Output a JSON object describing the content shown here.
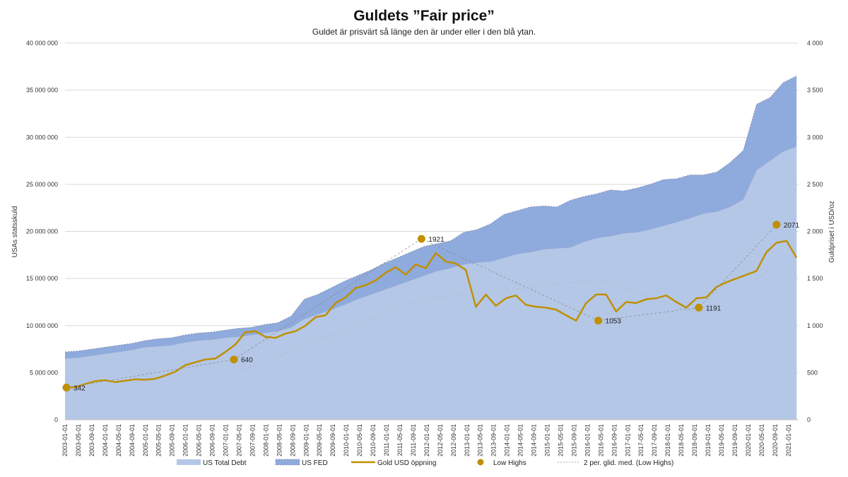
{
  "chart_data": {
    "type": "area",
    "title": "Guldets ”Fair price”",
    "subtitle": "Guldet är prisvärt så länge den är under eller i den blå ytan.",
    "ylabel_left": "USAs statsskuld",
    "ylabel_right": "Guldpriset i USD/oz",
    "ylim_left": [
      0,
      40000000
    ],
    "ylim_right": [
      0,
      4000
    ],
    "left_ticks": [
      "0",
      "5 000 000",
      "10 000 000",
      "15 000 000",
      "20 000 000",
      "25 000 000",
      "30 000 000",
      "35 000 000",
      "40 000 000"
    ],
    "right_ticks": [
      "0",
      "500",
      "1 000",
      "1 500",
      "2 000",
      "2 500",
      "3 000",
      "3 500",
      "4 000"
    ],
    "x_tick_labels": [
      "2003-01-01",
      "2003-05-01",
      "2003-09-01",
      "2004-01-01",
      "2004-05-01",
      "2004-09-01",
      "2005-01-01",
      "2005-05-01",
      "2005-09-01",
      "2006-01-01",
      "2006-05-01",
      "2006-09-01",
      "2007-01-01",
      "2007-05-01",
      "2007-09-01",
      "2008-01-01",
      "2008-05-01",
      "2008-09-01",
      "2009-01-01",
      "2009-05-01",
      "2009-09-01",
      "2010-01-01",
      "2010-05-01",
      "2010-09-01",
      "2011-01-01",
      "2011-05-01",
      "2011-09-01",
      "2012-01-01",
      "2012-05-01",
      "2012-09-01",
      "2013-01-01",
      "2013-05-01",
      "2013-09-01",
      "2014-01-01",
      "2014-05-01",
      "2014-09-01",
      "2015-01-01",
      "2015-05-01",
      "2015-09-01",
      "2016-01-01",
      "2016-05-01",
      "2016-09-01",
      "2017-01-01",
      "2017-05-01",
      "2017-09-01",
      "2018-01-01",
      "2018-05-01",
      "2018-09-01",
      "2019-01-01",
      "2019-05-01",
      "2019-09-01",
      "2020-01-01",
      "2020-05-01",
      "2020-09-01",
      "2021-01-01"
    ],
    "series": [
      {
        "name": "US Total Debt",
        "color": "#b4c7e7",
        "axis": "left",
        "values": [
          6500000,
          6600000,
          6800000,
          7000000,
          7200000,
          7400000,
          7700000,
          7800000,
          7900000,
          8200000,
          8400000,
          8500000,
          8700000,
          8800000,
          9000000,
          9200000,
          9400000,
          9800000,
          10700000,
          11200000,
          11700000,
          12200000,
          12800000,
          13300000,
          13800000,
          14300000,
          14800000,
          15300000,
          15800000,
          16100000,
          16500000,
          16700000,
          16800000,
          17200000,
          17600000,
          17800000,
          18100000,
          18200000,
          18300000,
          18900000,
          19300000,
          19500000,
          19800000,
          19900000,
          20200000,
          20600000,
          21000000,
          21400000,
          21900000,
          22100000,
          22600000,
          23400000,
          26500000,
          27500000,
          28500000,
          29000000
        ]
      },
      {
        "name": "US FED",
        "color": "#8faadc",
        "axis": "left",
        "values": [
          7200000,
          7300000,
          7500000,
          7700000,
          7900000,
          8100000,
          8400000,
          8600000,
          8700000,
          9000000,
          9200000,
          9300000,
          9500000,
          9700000,
          9800000,
          10100000,
          10300000,
          11000000,
          12800000,
          13300000,
          14000000,
          14700000,
          15300000,
          15900000,
          16600000,
          17200000,
          17800000,
          18400000,
          18700000,
          19000000,
          19900000,
          20200000,
          20800000,
          21800000,
          22200000,
          22600000,
          22700000,
          22600000,
          23300000,
          23700000,
          24000000,
          24400000,
          24300000,
          24600000,
          25000000,
          25500000,
          25600000,
          26000000,
          26000000,
          26300000,
          27300000,
          28600000,
          33500000,
          34200000,
          35800000,
          36500000
        ]
      },
      {
        "name": "Gold USD öppning",
        "color": "#bf9000",
        "axis": "right",
        "values": [
          342,
          345,
          380,
          410,
          420,
          400,
          415,
          430,
          425,
          435,
          470,
          510,
          580,
          610,
          640,
          650,
          720,
          800,
          930,
          940,
          880,
          870,
          915,
          940,
          1000,
          1090,
          1110,
          1240,
          1300,
          1400,
          1430,
          1480,
          1560,
          1620,
          1540,
          1650,
          1610,
          1770,
          1680,
          1660,
          1590,
          1200,
          1330,
          1210,
          1290,
          1320,
          1220,
          1200,
          1190,
          1170,
          1110,
          1053,
          1240,
          1330,
          1330,
          1150,
          1250,
          1240,
          1280,
          1290,
          1320,
          1250,
          1190,
          1290,
          1300,
          1410,
          1460,
          1500,
          1540,
          1580,
          1780,
          1880,
          1900,
          1720
        ]
      }
    ],
    "low_highs": [
      {
        "label": "342",
        "value": 342,
        "index": 0
      },
      {
        "label": "640",
        "value": 640,
        "index": 12.5
      },
      {
        "label": "1921",
        "value": 1921,
        "index": 26.5
      },
      {
        "label": "1053",
        "value": 1053,
        "index": 39.7
      },
      {
        "label": "1191",
        "value": 1191,
        "index": 47.2
      },
      {
        "label": "2071",
        "value": 2071,
        "index": 53
      }
    ],
    "legend": {
      "position": "bottom",
      "items": [
        "US Total Debt",
        "US FED",
        "Gold USD öppning",
        "Low Highs",
        "2 per. glid. med. (Low Highs)"
      ]
    },
    "grid": true
  }
}
